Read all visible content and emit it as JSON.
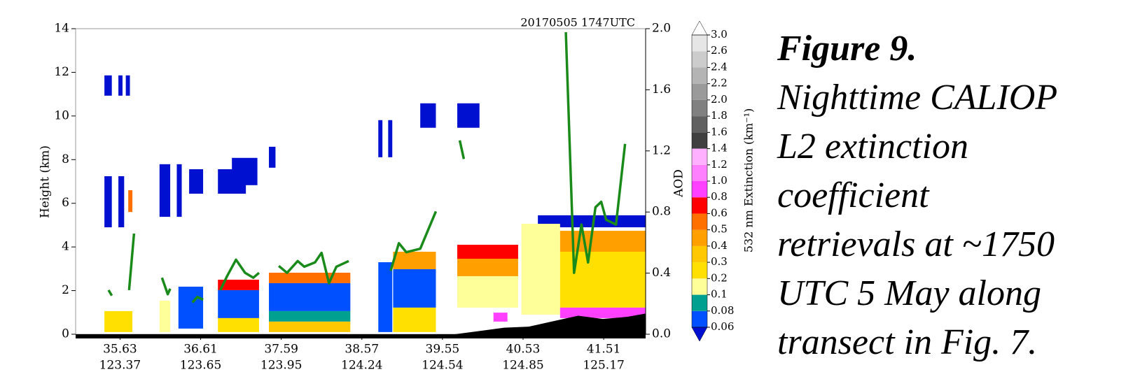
{
  "chart_data": {
    "type": "curtain",
    "timestamp": "20170505  1747UTC",
    "ylabel": "Height (km)",
    "y2label": "AOD",
    "ylim": [
      0,
      14
    ],
    "yticks": [
      0,
      2,
      4,
      6,
      8,
      10,
      12,
      14
    ],
    "y2lim": [
      0,
      2
    ],
    "y2ticks": [
      {
        "value": 0,
        "label": "0.0"
      },
      0.4,
      0.8,
      1.2,
      1.6,
      {
        "value": 2,
        "label": "2.0"
      }
    ],
    "xlim": [
      35.09,
      42.02
    ],
    "xticks": [
      35.63,
      36.61,
      37.59,
      38.57,
      39.55,
      40.53,
      41.51
    ],
    "xtick_lons": [
      123.37,
      123.65,
      123.95,
      124.24,
      124.54,
      124.85,
      125.17
    ],
    "colorbar": {
      "label": "532 nm Extinction (km⁻¹)",
      "levels": [
        0.06,
        0.08,
        0.1,
        0.2,
        0.3,
        0.4,
        0.5,
        0.6,
        0.8,
        {
          "value": 1,
          "label": "1.0"
        },
        1.2,
        1.4,
        1.6,
        1.8,
        {
          "value": 2,
          "label": "2.0"
        },
        2.2,
        2.4,
        2.6,
        {
          "value": 3,
          "label": "3.0"
        }
      ],
      "colors": [
        "#0050ff",
        "#00a090",
        "#ffff99",
        "#ffe000",
        "#ffc800",
        "#ffa000",
        "#ff7000",
        "#ff0000",
        "#ff40ff",
        "#ff80ff",
        "#ffb0ff",
        "#404040",
        "#606060",
        "#808080",
        "#9a9a9a",
        "#b4b4b4",
        "#cccccc",
        "#e6e6e6"
      ],
      "under": "#0010d0",
      "over": "#ffffff"
    },
    "cells": [
      {
        "lat": [
          35.44,
          35.53
        ],
        "height": [
          10.93,
          11.86
        ],
        "ext": 0.05
      },
      {
        "lat": [
          35.61,
          35.66
        ],
        "height": [
          10.93,
          11.86
        ],
        "ext": 0.05
      },
      {
        "lat": [
          35.7,
          35.75
        ],
        "height": [
          10.93,
          11.86
        ],
        "ext": 0.05
      },
      {
        "lat": [
          35.44,
          35.53
        ],
        "height": [
          4.9,
          7.24
        ],
        "ext": 0.05
      },
      {
        "lat": [
          35.61,
          35.68
        ],
        "height": [
          4.9,
          7.24
        ],
        "ext": 0.05
      },
      {
        "lat": [
          35.73,
          35.78
        ],
        "height": [
          5.6,
          6.6
        ],
        "ext": 0.5
      },
      {
        "lat": [
          36.11,
          36.24
        ],
        "height": [
          5.38,
          7.79
        ],
        "ext": 0.05
      },
      {
        "lat": [
          36.32,
          36.38
        ],
        "height": [
          5.38,
          7.79
        ],
        "ext": 0.05
      },
      {
        "lat": [
          36.47,
          36.64
        ],
        "height": [
          6.44,
          7.56
        ],
        "ext": 0.05
      },
      {
        "lat": [
          36.82,
          37.16
        ],
        "height": [
          6.44,
          7.56
        ],
        "ext": 0.05
      },
      {
        "lat": [
          36.99,
          37.3
        ],
        "height": [
          6.83,
          8.08
        ],
        "ext": 0.05
      },
      {
        "lat": [
          37.44,
          37.52
        ],
        "height": [
          7.63,
          8.59
        ],
        "ext": 0.05
      },
      {
        "lat": [
          38.77,
          38.82
        ],
        "height": [
          8.11,
          9.81
        ],
        "ext": 0.05
      },
      {
        "lat": [
          38.89,
          38.94
        ],
        "height": [
          8.11,
          9.81
        ],
        "ext": 0.05
      },
      {
        "lat": [
          39.28,
          39.47
        ],
        "height": [
          9.46,
          10.58
        ],
        "ext": 0.05
      },
      {
        "lat": [
          39.73,
          40.0
        ],
        "height": [
          9.46,
          10.58
        ],
        "ext": 0.05
      },
      {
        "lat": [
          40.71,
          42.02
        ],
        "height": [
          4.9,
          5.45
        ],
        "ext": 0.05
      },
      {
        "lat": [
          35.44,
          35.78
        ],
        "height": [
          0.1,
          1.06
        ],
        "ext": 0.2
      },
      {
        "lat": [
          36.11,
          36.24
        ],
        "height": [
          0.1,
          1.54
        ],
        "ext": 0.15
      },
      {
        "lat": [
          36.34,
          36.64
        ],
        "height": [
          0.26,
          2.18
        ],
        "ext": 0.07
      },
      {
        "lat": [
          36.82,
          37.32
        ],
        "height": [
          2.02,
          2.5
        ],
        "ext": 0.6
      },
      {
        "lat": [
          36.82,
          37.32
        ],
        "height": [
          0.74,
          2.02
        ],
        "ext": 0.07
      },
      {
        "lat": [
          36.82,
          37.32
        ],
        "height": [
          0.1,
          0.74
        ],
        "ext": 0.25
      },
      {
        "lat": [
          37.44,
          38.43
        ],
        "height": [
          2.34,
          2.82
        ],
        "ext": 0.55
      },
      {
        "lat": [
          37.44,
          38.43
        ],
        "height": [
          1.06,
          2.34
        ],
        "ext": 0.07
      },
      {
        "lat": [
          37.44,
          38.43
        ],
        "height": [
          0.58,
          1.06
        ],
        "ext": 0.09
      },
      {
        "lat": [
          37.44,
          38.43
        ],
        "height": [
          0.1,
          0.58
        ],
        "ext": 0.35
      },
      {
        "lat": [
          38.77,
          38.94
        ],
        "height": [
          0.1,
          3.3
        ],
        "ext": 0.07
      },
      {
        "lat": [
          38.95,
          39.47
        ],
        "height": [
          2.98,
          3.78
        ],
        "ext": 0.45
      },
      {
        "lat": [
          38.95,
          39.47
        ],
        "height": [
          1.22,
          2.98
        ],
        "ext": 0.07
      },
      {
        "lat": [
          38.95,
          39.47
        ],
        "height": [
          0.1,
          1.22
        ],
        "ext": 0.25
      },
      {
        "lat": [
          39.73,
          40.47
        ],
        "height": [
          3.46,
          4.1
        ],
        "ext": 0.7
      },
      {
        "lat": [
          39.73,
          40.47
        ],
        "height": [
          2.66,
          3.46
        ],
        "ext": 0.45
      },
      {
        "lat": [
          39.73,
          40.47
        ],
        "height": [
          1.22,
          2.66
        ],
        "ext": 0.15
      },
      {
        "lat": [
          40.17,
          40.34
        ],
        "height": [
          0.58,
          0.99
        ],
        "ext": 0.9
      },
      {
        "lat": [
          40.51,
          40.98
        ],
        "height": [
          0.9,
          5.06
        ],
        "ext": 0.15
      },
      {
        "lat": [
          40.98,
          42.02
        ],
        "height": [
          3.78,
          4.74
        ],
        "ext": 0.45
      },
      {
        "lat": [
          40.98,
          42.02
        ],
        "height": [
          1.22,
          3.78
        ],
        "ext": 0.25
      },
      {
        "lat": [
          40.98,
          42.02
        ],
        "height": [
          0.74,
          1.22
        ],
        "ext": 0.9
      }
    ],
    "surface": {
      "color": "#000000",
      "lat": [
        35.09,
        39.7,
        40.0,
        40.3,
        40.6,
        40.9,
        41.2,
        41.5,
        41.8,
        42.02
      ],
      "height": [
        0,
        0,
        0.15,
        0.3,
        0.35,
        0.6,
        0.85,
        0.7,
        0.8,
        0.95
      ]
    },
    "aod_line": {
      "color": "#1a8a1a",
      "axis": "y2",
      "x": [
        35.49,
        35.53,
        null,
        35.74,
        35.8,
        null,
        36.14,
        36.21,
        36.24,
        null,
        36.51,
        36.57,
        36.64,
        null,
        36.85,
        36.93,
        37.04,
        37.15,
        37.25,
        37.32,
        null,
        37.56,
        37.66,
        37.79,
        37.87,
        38.0,
        38.08,
        38.17,
        38.26,
        38.41,
        null,
        38.92,
        39.02,
        39.11,
        39.28,
        39.47,
        null,
        39.76,
        39.81,
        null,
        41.05,
        41.15,
        41.24,
        41.32,
        41.41,
        41.48,
        41.54,
        41.66,
        41.77
      ],
      "values": [
        0.289,
        0.253,
        null,
        0.289,
        0.659,
        null,
        0.37,
        0.262,
        0.298,
        null,
        0.208,
        0.244,
        0.226,
        null,
        0.289,
        0.379,
        0.488,
        0.402,
        0.37,
        0.402,
        null,
        0.447,
        0.402,
        0.479,
        0.442,
        0.47,
        0.533,
        0.334,
        0.442,
        0.479,
        null,
        0.415,
        0.596,
        0.537,
        0.56,
        0.804,
        null,
        1.269,
        1.147,
        null,
        1.977,
        0.402,
        0.718,
        0.47,
        0.831,
        0.867,
        0.749,
        0.718,
        1.246
      ]
    }
  },
  "caption": [
    "Figure 9.",
    "Nighttime CALIOP",
    "L2 extinction",
    "coefficient",
    "retrievals at ~1750",
    "UTC 5 May along",
    "transect in Fig. 7."
  ]
}
